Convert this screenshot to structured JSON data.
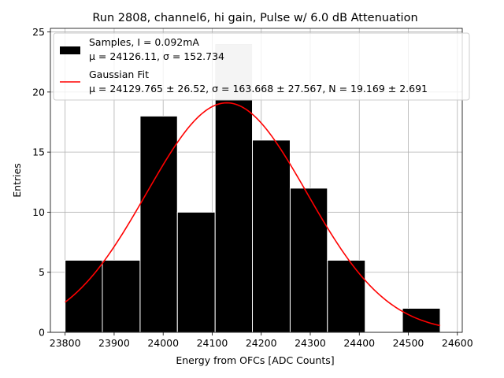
{
  "chart_data": {
    "type": "histogram",
    "title": "Run 2808, channel6, hi gain, Pulse w/ 6.0 dB Attenuation",
    "xlabel": "Energy from OFCs [ADC Counts]",
    "ylabel": "Entries",
    "xlim": [
      23770,
      24610
    ],
    "ylim": [
      0,
      25.3
    ],
    "xticks": [
      23800,
      23900,
      24000,
      24100,
      24200,
      24300,
      24400,
      24500,
      24600
    ],
    "yticks": [
      0,
      5,
      10,
      15,
      20,
      25
    ],
    "grid": true,
    "legend_position": "top-right",
    "bins": [
      {
        "x0": 23800,
        "x1": 23876,
        "count": 6
      },
      {
        "x0": 23876,
        "x1": 23953,
        "count": 6
      },
      {
        "x0": 23953,
        "x1": 24029,
        "count": 18
      },
      {
        "x0": 24029,
        "x1": 24106,
        "count": 10
      },
      {
        "x0": 24106,
        "x1": 24182,
        "count": 24
      },
      {
        "x0": 24182,
        "x1": 24259,
        "count": 16
      },
      {
        "x0": 24259,
        "x1": 24335,
        "count": 12
      },
      {
        "x0": 24335,
        "x1": 24412,
        "count": 6
      },
      {
        "x0": 24412,
        "x1": 24488,
        "count": 0
      },
      {
        "x0": 24488,
        "x1": 24565,
        "count": 2
      }
    ],
    "fit": {
      "mu": 24129.765,
      "sigma": 163.668,
      "x_range": [
        23800,
        24565
      ],
      "peak": 19.1
    },
    "series": [
      {
        "name": "Samples, I = 0.092mA",
        "stats": "μ = 24126.11, σ = 152.734",
        "color": "#000000"
      },
      {
        "name": "Gaussian Fit",
        "stats": "μ = 24129.765 ± 26.52, σ = 163.668 ± 27.567, N = 19.169 ± 2.691",
        "color": "#ff0000"
      }
    ],
    "overlap_color": "#c8c8c8"
  }
}
